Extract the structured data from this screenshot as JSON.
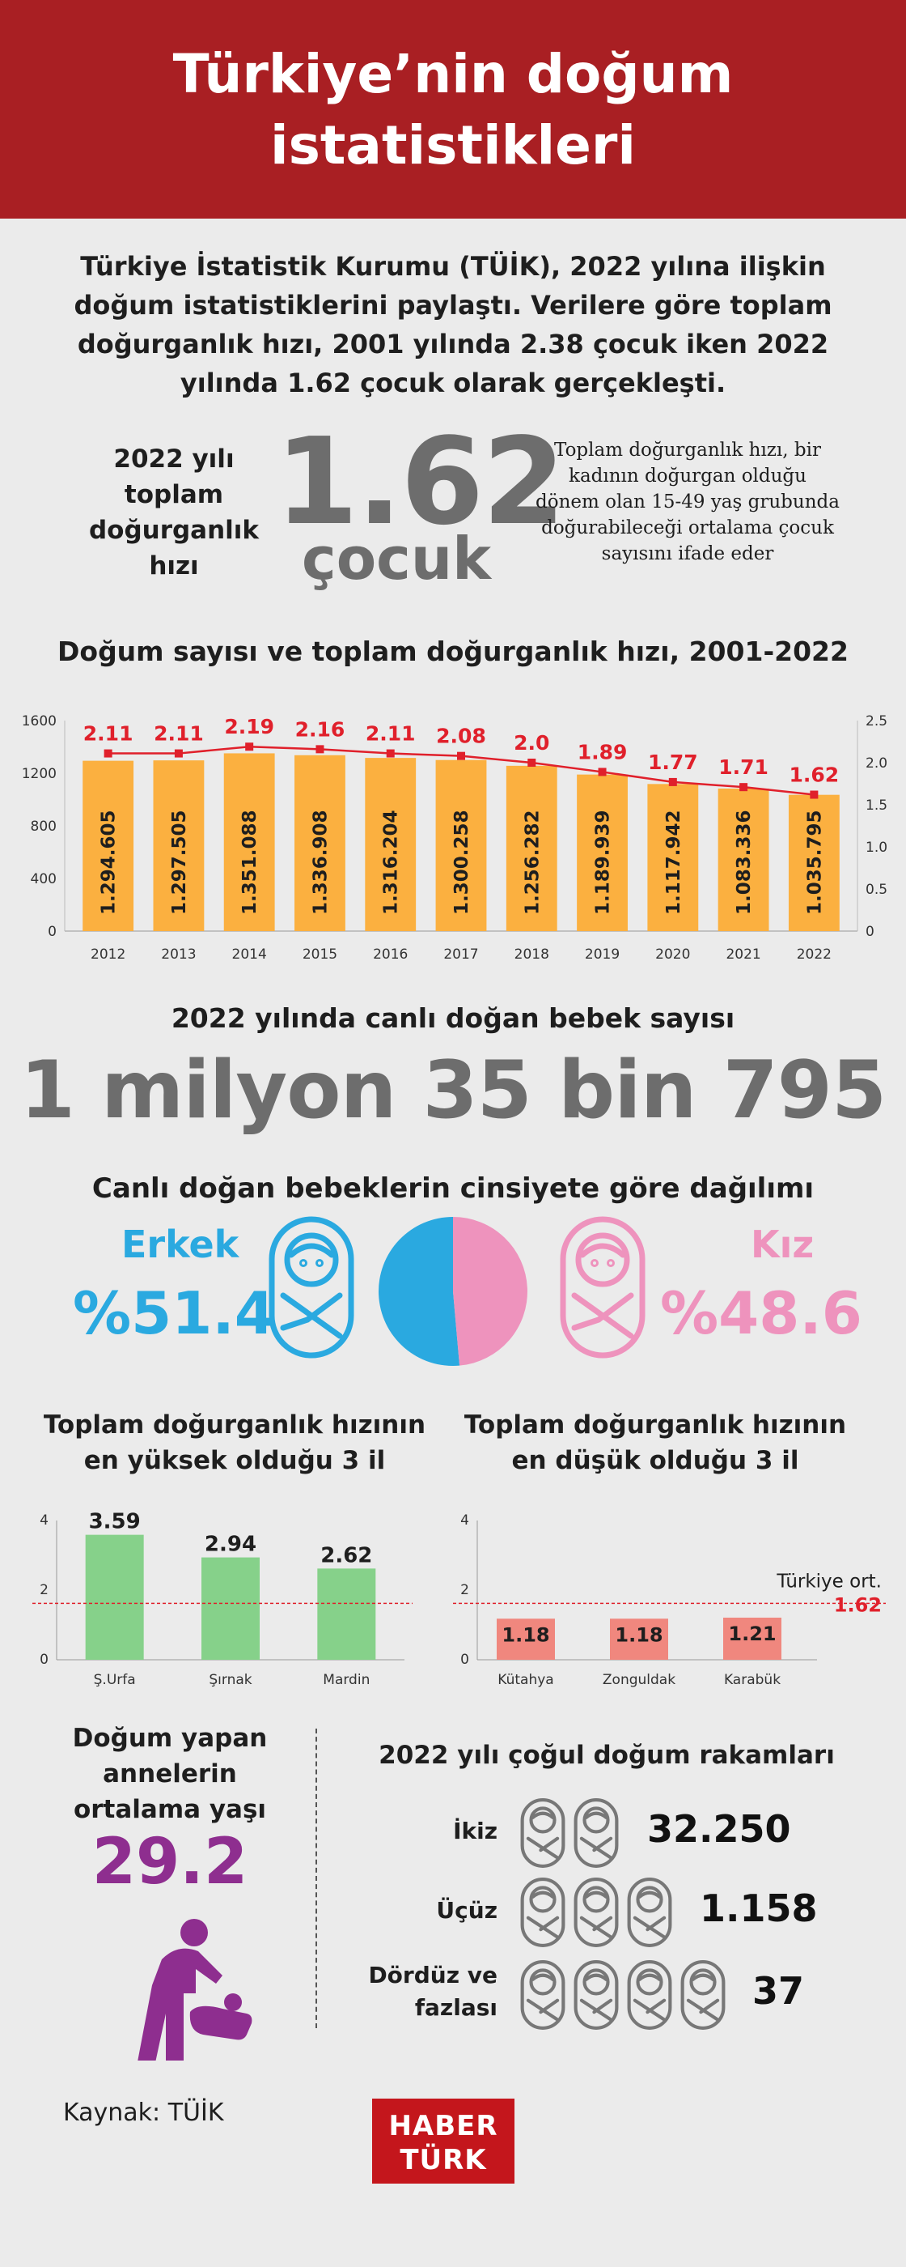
{
  "title": "Türkiye’nin doğum istatistikleri",
  "intro": "Türkiye İstatistik Kurumu (TÜİK), 2022 yılına ilişkin doğum istatistiklerini paylaştı. Verilere göre toplam doğurganlık hızı, 2001 yılında 2.38 çocuk iken 2022 yılında 1.62 çocuk olarak gerçekleşti.",
  "tfr": {
    "label": "2022 yılı toplam doğurganlık hızı",
    "value": "1.62",
    "unit": "çocuk",
    "description": "Toplam doğurganlık hızı, bir kadının doğurgan olduğu dönem olan 15-49 yaş grubunda doğurabileceği ortalama çocuk sayısını ifade eder"
  },
  "colors": {
    "header": "#a91f23",
    "bar": "#fbb040",
    "line": "#e0202b",
    "male": "#2aa9e0",
    "female": "#ee93bd",
    "high_bar": "#86d18a",
    "low_bar": "#f0877e",
    "mother": "#8e2e8f",
    "gray_value": "#6d6d6d"
  },
  "chart_data": [
    {
      "type": "bar",
      "title": "Doğum sayısı ve toplam doğurganlık hızı, 2001-2022",
      "categories": [
        "2012",
        "2013",
        "2014",
        "2015",
        "2016",
        "2017",
        "2018",
        "2019",
        "2020",
        "2021",
        "2022"
      ],
      "series": [
        {
          "values": [
            1294605,
            1297505,
            1351088,
            1336908,
            1316204,
            1300258,
            1256282,
            1189939,
            1117942,
            1083336,
            1035795
          ],
          "labels": [
            "1.294.605",
            "1.297.505",
            "1.351.088",
            "1.336.908",
            "1.316.204",
            "1.300.258",
            "1.256.282",
            "1.189.939",
            "1.117.942",
            "1.083.336",
            "1.035.795"
          ]
        },
        {
          "values": [
            2.11,
            2.11,
            2.19,
            2.16,
            2.11,
            2.08,
            2.0,
            1.89,
            1.77,
            1.71,
            1.62
          ],
          "labels": [
            "2.11",
            "2.11",
            "2.19",
            "2.16",
            "2.11",
            "2.08",
            "2.0",
            "1.89",
            "1.77",
            "1.71",
            "1.62"
          ]
        }
      ],
      "left_axis": {
        "ticks": [
          "0",
          "400",
          "800",
          "1200",
          "1600"
        ],
        "range_thousands": [
          0,
          1600
        ]
      },
      "right_axis": {
        "ticks": [
          "0",
          "0.5",
          "1.0",
          "1.5",
          "2.0",
          "2.5"
        ],
        "range": [
          0,
          2.5
        ]
      }
    },
    {
      "type": "bar",
      "title": "Toplam doğurganlık hızının en yüksek olduğu 3 il",
      "categories": [
        "Ş.Urfa",
        "Şırnak",
        "Mardin"
      ],
      "values": [
        3.59,
        2.94,
        2.62
      ],
      "labels": [
        "3.59",
        "2.94",
        "2.62"
      ],
      "ylim": [
        0,
        4
      ],
      "ticks": [
        "0",
        "2",
        "4"
      ],
      "reference": 1.62
    },
    {
      "type": "bar",
      "title": "Toplam doğurganlık hızının en düşük olduğu 3 il",
      "categories": [
        "Kütahya",
        "Zonguldak",
        "Karabük"
      ],
      "values": [
        1.18,
        1.18,
        1.21
      ],
      "labels": [
        "1.18",
        "1.18",
        "1.21"
      ],
      "ylim": [
        0,
        4
      ],
      "ticks": [
        "0",
        "2",
        "4"
      ],
      "reference": 1.62,
      "reference_label": "Türkiye ort.",
      "reference_value_label": "1.62"
    },
    {
      "type": "pie",
      "title": "Canlı doğan bebeklerin cinsiyete göre dağılımı",
      "categories": [
        "Erkek",
        "Kız"
      ],
      "values": [
        51.4,
        48.6
      ]
    }
  ],
  "births": {
    "label": "2022 yılında canlı doğan bebek sayısı",
    "value": "1 milyon 35 bin 795"
  },
  "gender": {
    "male_label": "Erkek",
    "male_pct": "%51.4",
    "female_label": "Kız",
    "female_pct": "%48.6"
  },
  "high_title": "Toplam doğurganlık hızının en yüksek olduğu 3 il",
  "low_title": "Toplam doğurganlık hızının en düşük olduğu 3 il",
  "mother": {
    "title": "Doğum yapan annelerin ortalama yaşı",
    "value": "29.2"
  },
  "multi": {
    "title": "2022 yılı çoğul doğum rakamları",
    "rows": [
      {
        "label": "İkiz",
        "value": "32.250",
        "icons": 2
      },
      {
        "label": "Üçüz",
        "value": "1.158",
        "icons": 3
      },
      {
        "label": "Dördüz ve fazlası",
        "value": "37",
        "icons": 4
      }
    ]
  },
  "source": "Kaynak: TÜİK",
  "logo": {
    "top": "HABER",
    "bottom": "TÜRK"
  }
}
